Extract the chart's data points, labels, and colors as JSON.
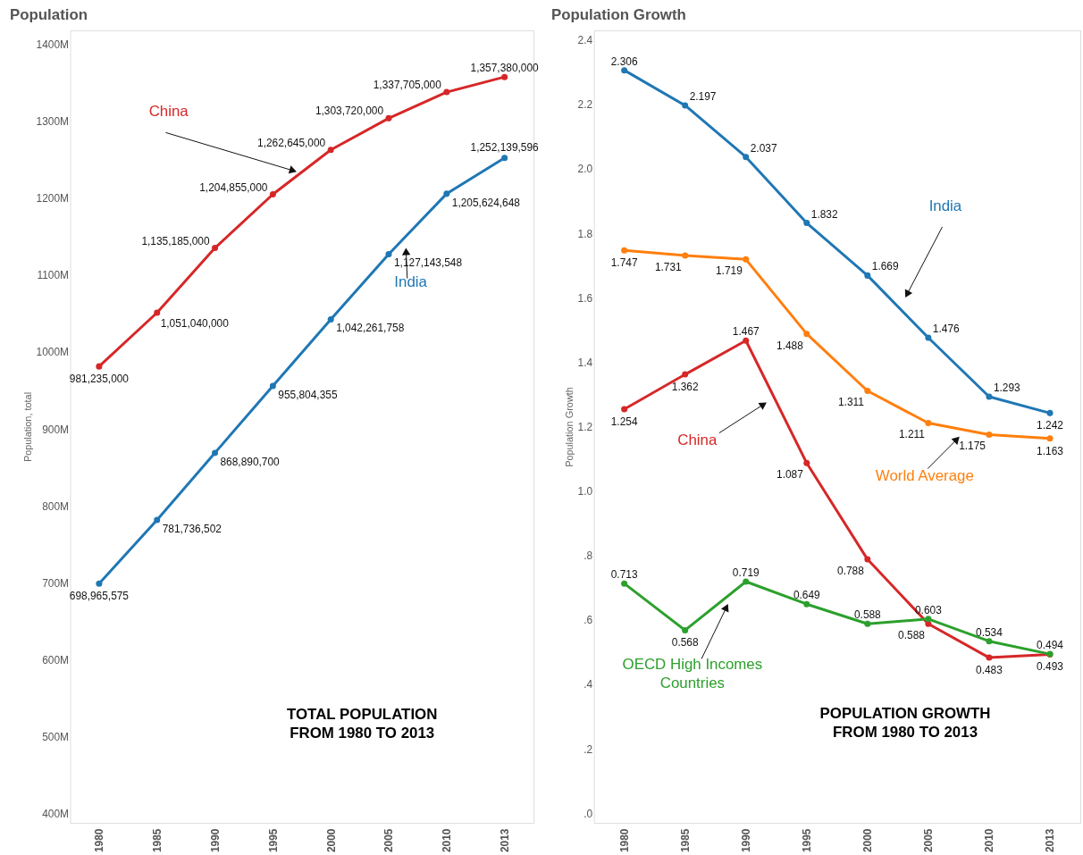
{
  "chart_data": [
    {
      "type": "line",
      "title": "Population",
      "ylabel": "Population, total",
      "categories": [
        "1980",
        "1985",
        "1990",
        "1995",
        "2000",
        "2005",
        "2010",
        "2013"
      ],
      "series": [
        {
          "name": "China",
          "color": "#d62728",
          "values": [
            981235000,
            1051040000,
            1135185000,
            1204855000,
            1262645000,
            1303720000,
            1337705000,
            1357380000
          ],
          "value_labels": [
            "981,235,000",
            "1,051,040,000",
            "1,135,185,000",
            "1,204,855,000",
            "1,262,645,000",
            "1,303,720,000",
            "1,337,705,000",
            "1,357,380,000"
          ]
        },
        {
          "name": "India",
          "color": "#1f77b4",
          "values": [
            698965575,
            781736502,
            868890700,
            955804355,
            1042261758,
            1127143548,
            1205624648,
            1252139596
          ],
          "value_labels": [
            "698,965,575",
            "781,736,502",
            "868,890,700",
            "955,804,355",
            "1,042,261,758",
            "1,127,143,548",
            "1,205,624,648",
            "1,252,139,596"
          ]
        }
      ],
      "ylim": [
        388000000,
        1418000000
      ],
      "yticks": [
        {
          "value": 400000000,
          "label": "400M"
        },
        {
          "value": 500000000,
          "label": "500M"
        },
        {
          "value": 600000000,
          "label": "600M"
        },
        {
          "value": 700000000,
          "label": "700M"
        },
        {
          "value": 800000000,
          "label": "800M"
        },
        {
          "value": 900000000,
          "label": "900M"
        },
        {
          "value": 1000000000,
          "label": "1000M"
        },
        {
          "value": 1100000000,
          "label": "1100M"
        },
        {
          "value": 1200000000,
          "label": "1200M"
        },
        {
          "value": 1300000000,
          "label": "1300M"
        },
        {
          "value": 1400000000,
          "label": "1400M"
        }
      ],
      "marker": "circle",
      "line_style": "solid",
      "grid": false,
      "annotations": [
        "TOTAL POPULATION\nFROM 1980 TO 2013"
      ]
    },
    {
      "type": "line",
      "title": "Population Growth",
      "ylabel": "Population Growth",
      "categories": [
        "1980",
        "1985",
        "1990",
        "1995",
        "2000",
        "2005",
        "2010",
        "2013"
      ],
      "series": [
        {
          "name": "India",
          "color": "#1f77b4",
          "values": [
            2.306,
            2.197,
            2.037,
            1.832,
            1.669,
            1.476,
            1.293,
            1.242
          ]
        },
        {
          "name": "World Average",
          "color": "#ff7f0e",
          "values": [
            1.747,
            1.731,
            1.719,
            1.488,
            1.311,
            1.211,
            1.175,
            1.163
          ]
        },
        {
          "name": "China",
          "color": "#d62728",
          "values": [
            1.254,
            1.362,
            1.467,
            1.087,
            0.788,
            0.588,
            0.483,
            0.493
          ]
        },
        {
          "name": "OECD High Incomes Countries",
          "color": "#2ca02c",
          "values": [
            0.713,
            0.568,
            0.719,
            0.649,
            0.588,
            0.603,
            0.534,
            0.494
          ]
        }
      ],
      "ylim": [
        -0.03,
        2.43
      ],
      "yticks": [
        {
          "value": 0,
          "label": ".0"
        },
        {
          "value": 0.2,
          "label": ".2"
        },
        {
          "value": 0.4,
          "label": ".4"
        },
        {
          "value": 0.6,
          "label": ".6"
        },
        {
          "value": 0.8,
          "label": ".8"
        },
        {
          "value": 1.0,
          "label": "1.0"
        },
        {
          "value": 1.2,
          "label": "1.2"
        },
        {
          "value": 1.4,
          "label": "1.4"
        },
        {
          "value": 1.6,
          "label": "1.6"
        },
        {
          "value": 1.8,
          "label": "1.8"
        },
        {
          "value": 2.0,
          "label": "2.0"
        },
        {
          "value": 2.2,
          "label": "2.2"
        },
        {
          "value": 2.4,
          "label": "2.4"
        }
      ],
      "data_labels": true,
      "marker": "circle",
      "line_style": "solid",
      "grid": false,
      "annotations": [
        "POPULATION GROWTH\nFROM 1980 TO 2013"
      ]
    }
  ]
}
